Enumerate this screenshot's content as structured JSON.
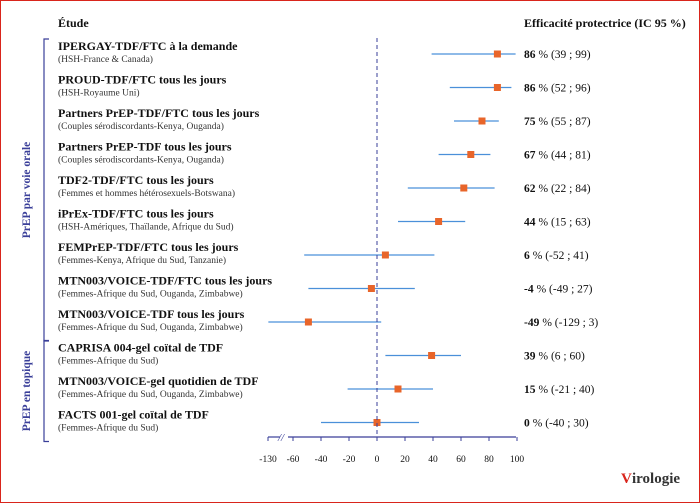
{
  "header": {
    "study_label": "Étude",
    "effect_label": "Efficacité protectrice (IC 95 %)"
  },
  "groups": [
    {
      "label": "PrEP par voie orale",
      "from": 0,
      "to": 8
    },
    {
      "label": "PrEP en topique",
      "from": 9,
      "to": 11
    }
  ],
  "logo": {
    "text": "irologie",
    "mark": "V"
  },
  "colors": {
    "marker": "#e8652a",
    "ci_line": "#4a90d9",
    "axis": "#3a3f99",
    "zero_line": "#3a3f99",
    "frame": "#d9251c"
  },
  "chart_data": {
    "type": "forest",
    "xlim": [
      -130,
      100
    ],
    "xticks": [
      -130,
      -60,
      -40,
      -20,
      0,
      20,
      40,
      60,
      80,
      100
    ],
    "axis_break": "//",
    "reference_line": 0,
    "studies": [
      {
        "name": "IPERGAY-TDF/FTC à la demande",
        "population": "(HSH-France & Canada)",
        "effect": 86,
        "ci": [
          39,
          99
        ],
        "effect_label": "86",
        "ci_label": "% (39 ; 99)"
      },
      {
        "name": "PROUD-TDF/FTC tous les jours",
        "population": "(HSH-Royaume Uni)",
        "effect": 86,
        "ci": [
          52,
          96
        ],
        "effect_label": "86",
        "ci_label": "% (52 ; 96)"
      },
      {
        "name": "Partners PrEP-TDF/FTC tous les jours",
        "population": "(Couples sérodiscordants-Kenya, Ouganda)",
        "effect": 75,
        "ci": [
          55,
          87
        ],
        "effect_label": "75",
        "ci_label": "% (55 ; 87)"
      },
      {
        "name": "Partners PrEP-TDF tous les jours",
        "population": "(Couples sérodiscordants-Kenya, Ouganda)",
        "effect": 67,
        "ci": [
          44,
          81
        ],
        "effect_label": "67",
        "ci_label": "% (44 ; 81)"
      },
      {
        "name": "TDF2-TDF/FTC tous les jours",
        "population": "(Femmes et hommes hétérosexuels-Botswana)",
        "effect": 62,
        "ci": [
          22,
          84
        ],
        "effect_label": "62",
        "ci_label": "% (22 ; 84)"
      },
      {
        "name": "iPrEx-TDF/FTC tous les jours",
        "population": "(HSH-Amériques, Thaïlande, Afrique du Sud)",
        "effect": 44,
        "ci": [
          15,
          63
        ],
        "effect_label": "44",
        "ci_label": "% (15 ; 63)"
      },
      {
        "name": "FEMPrEP-TDF/FTC tous les jours",
        "population": "(Femmes-Kenya, Afrique du Sud, Tanzanie)",
        "effect": 6,
        "ci": [
          -52,
          41
        ],
        "effect_label": "6",
        "ci_label": "% (-52 ; 41)"
      },
      {
        "name": "MTN003/VOICE-TDF/FTC tous les jours",
        "population": "(Femmes-Afrique du Sud, Ouganda, Zimbabwe)",
        "effect": -4,
        "ci": [
          -49,
          27
        ],
        "effect_label": "-4",
        "ci_label": "% (-49 ; 27)"
      },
      {
        "name": "MTN003/VOICE-TDF tous les jours",
        "population": "(Femmes-Afrique du Sud, Ouganda, Zimbabwe)",
        "effect": -49,
        "ci": [
          -129,
          3
        ],
        "effect_label": "-49",
        "ci_label": "% (-129 ; 3)"
      },
      {
        "name": "CAPRISA 004-gel coïtal de TDF",
        "population": "(Femmes-Afrique du Sud)",
        "effect": 39,
        "ci": [
          6,
          60
        ],
        "effect_label": "39",
        "ci_label": "% (6 ; 60)"
      },
      {
        "name": "MTN003/VOICE-gel quotidien de TDF",
        "population": "(Femmes-Afrique du Sud, Ouganda, Zimbabwe)",
        "effect": 15,
        "ci": [
          -21,
          40
        ],
        "effect_label": "15",
        "ci_label": "% (-21 ; 40)"
      },
      {
        "name": "FACTS 001-gel coïtal de TDF",
        "population": "(Femmes-Afrique du Sud)",
        "effect": 0,
        "ci": [
          -40,
          30
        ],
        "effect_label": "0",
        "ci_label": "% (-40 ; 30)"
      }
    ]
  }
}
